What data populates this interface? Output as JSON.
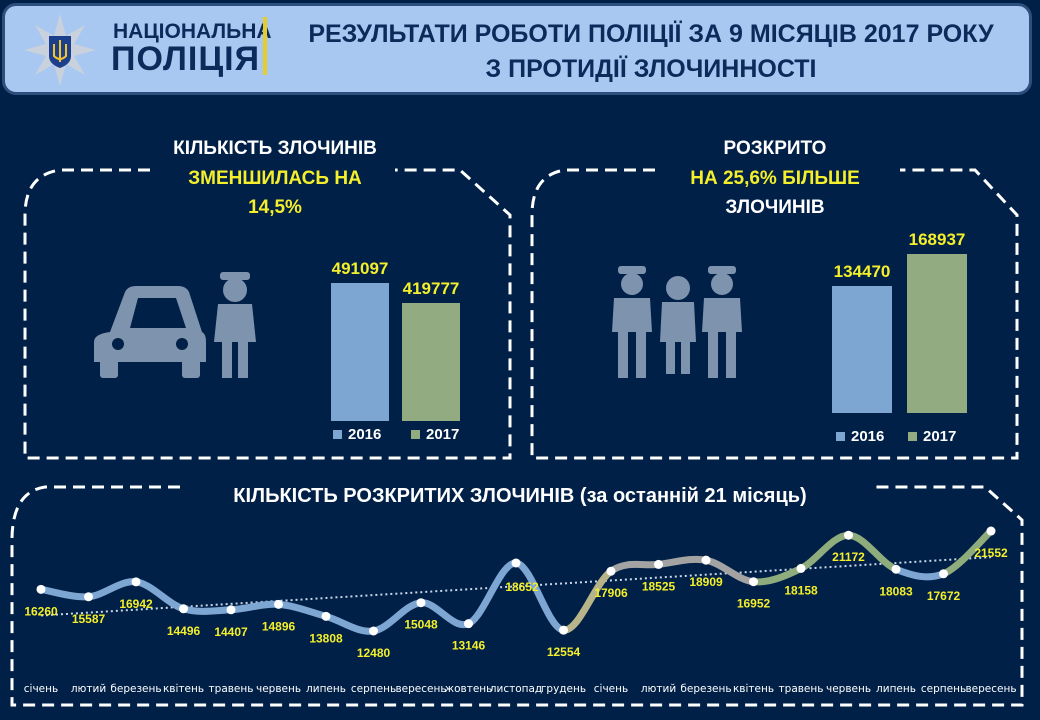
{
  "header": {
    "logo_line1": "НАЦІОНАЛЬНА",
    "logo_line2": "ПОЛІЦІЯ",
    "title_line1": "РЕЗУЛЬТАТИ РОБОТИ ПОЛІЦІЇ ЗА 9 МІСЯЦІВ 2017 РОКУ",
    "title_line2": "З ПРОТИДІЇ ЗЛОЧИННОСТІ"
  },
  "crimes_panel": {
    "line1": "КІЛЬКІСТЬ ЗЛОЧИНІВ",
    "line2": "ЗМЕНШИЛАСЬ НА",
    "line3": "14,5%",
    "chart": {
      "type": "bar",
      "categories": [
        "2016",
        "2017"
      ],
      "values": [
        491097,
        419777
      ],
      "colors": [
        "#7ea6d3",
        "#92ab80"
      ]
    }
  },
  "solved_panel": {
    "line1": "РОЗКРИТО",
    "line2": "НА 25,6% БІЛЬШЕ",
    "line3": "ЗЛОЧИНІВ",
    "chart": {
      "type": "bar",
      "categories": [
        "2016",
        "2017"
      ],
      "values": [
        134470,
        168937
      ],
      "colors": [
        "#7ea6d3",
        "#92ab80"
      ]
    }
  },
  "chart_data": {
    "type": "line",
    "title": "КІЛЬКІСТЬ РОЗКРИТИХ ЗЛОЧИНІВ (за останній 21 місяць)",
    "categories": [
      "січень",
      "лютий",
      "березень",
      "квітень",
      "травень",
      "червень",
      "липень",
      "серпень",
      "вересень",
      "жовтень",
      "листопад",
      "грудень",
      "січень",
      "лютий",
      "березень",
      "квітень",
      "травень",
      "червень",
      "липень",
      "серпень",
      "вересень"
    ],
    "values": [
      16260,
      15587,
      16942,
      14496,
      14407,
      14896,
      13808,
      12480,
      15048,
      13146,
      18652,
      12554,
      17906,
      18525,
      18909,
      16952,
      18158,
      21172,
      18083,
      17672,
      21552
    ],
    "trendline": "linear, dotted",
    "segment_colors": [
      "#7ea6d3",
      "#7ea6d3",
      "#7ea6d3",
      "#7ea6d3",
      "#7ea6d3",
      "#7ea6d3",
      "#7ea6d3",
      "#7ea6d3",
      "#7ea6d3",
      "#7ea6d3",
      "#7ea6d3",
      "#b8b48a",
      "#a3a3a3",
      "#a3a3a3",
      "#a3a3a3",
      "#8fac7c",
      "#8fac7c",
      "#8fac7c",
      "#7ea6d3",
      "#8fac7c"
    ],
    "label_color": "#f4ef2a"
  }
}
